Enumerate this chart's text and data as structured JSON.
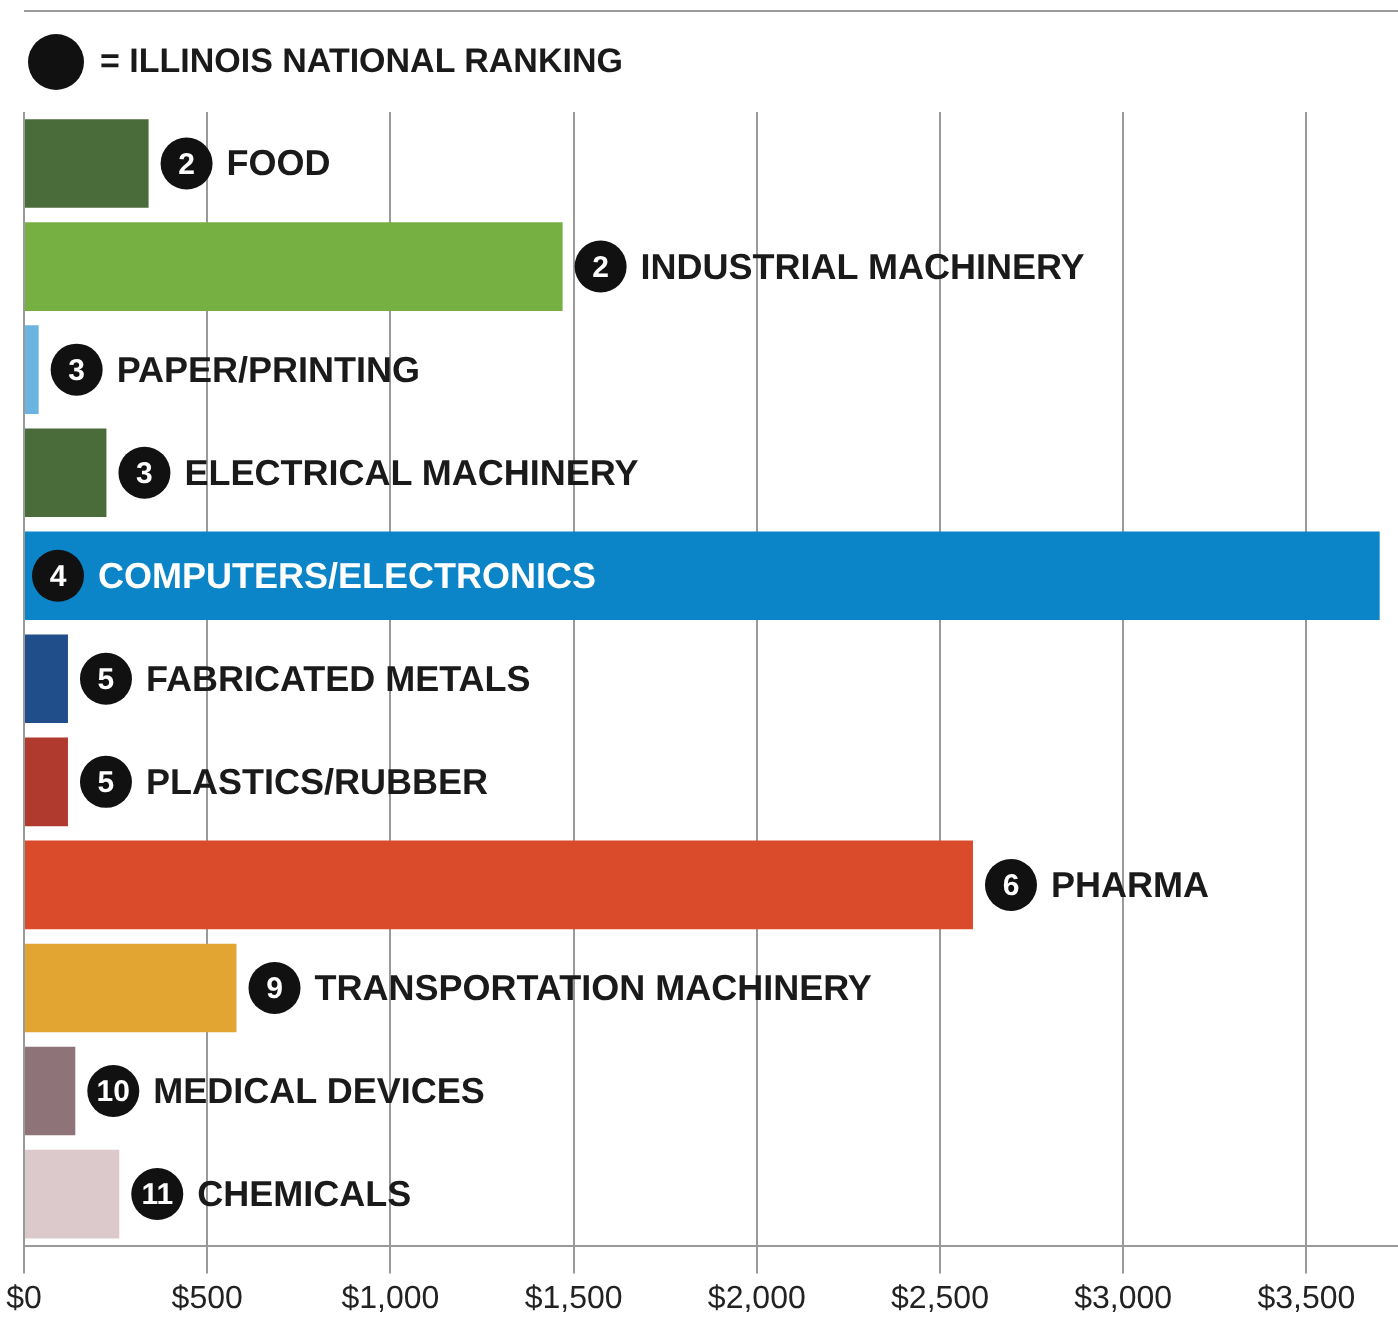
{
  "chart_data": {
    "type": "bar",
    "orientation": "horizontal",
    "categories": [
      "FOOD",
      "INDUSTRIAL MACHINERY",
      "PAPER/PRINTING",
      "ELECTRICAL MACHINERY",
      "COMPUTERS/ELECTRONICS",
      "FABRICATED METALS",
      "PLASTICS/RUBBER",
      "PHARMA",
      "TRANSPORTATION MACHINERY",
      "MEDICAL DEVICES",
      "CHEMICALS"
    ],
    "values": [
      340,
      1470,
      40,
      225,
      3700,
      120,
      120,
      2590,
      580,
      140,
      260
    ],
    "colors": [
      "#4a6b3a",
      "#76b043",
      "#6cb4e0",
      "#4a6b3a",
      "#0b85c8",
      "#1f4e8a",
      "#b03a2e",
      "#d94b2b",
      "#e3a531",
      "#8e7479",
      "#dcc9cb"
    ],
    "xlim": [
      0,
      3750
    ],
    "xticks": [
      {
        "value": 0,
        "label": "$0"
      },
      {
        "value": 500,
        "label": "$500"
      },
      {
        "value": 1000,
        "label": "$1,000"
      },
      {
        "value": 1500,
        "label": "$1,500"
      },
      {
        "value": 2000,
        "label": "$2,000"
      },
      {
        "value": 2500,
        "label": "$2,500"
      },
      {
        "value": 3000,
        "label": "$3,000"
      },
      {
        "value": 3500,
        "label": "$3,500"
      }
    ],
    "grid": "x",
    "legend": false,
    "tick_labels": "x",
    "annotations": [
      "= ILLINOIS NATIONAL RANKING",
      "2",
      "2",
      "3",
      "3",
      "4",
      "5",
      "5",
      "6",
      "9",
      "10",
      "11"
    ]
  }
}
